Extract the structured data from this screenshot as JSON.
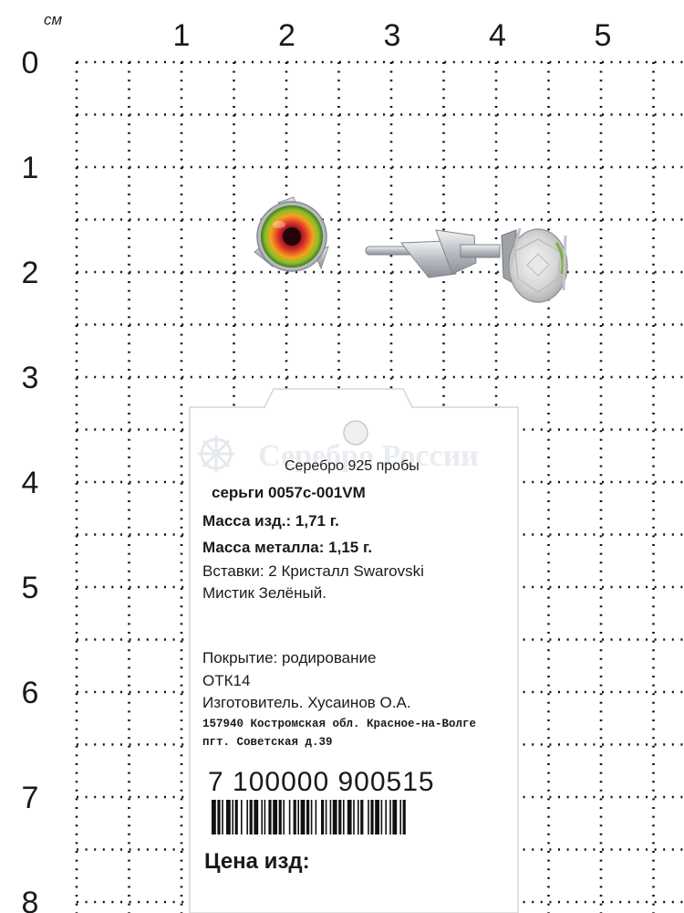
{
  "ruler": {
    "unit": "см",
    "x_labels": [
      "1",
      "2",
      "3",
      "4",
      "5"
    ],
    "y_labels": [
      "0",
      "1",
      "2",
      "3",
      "4",
      "5",
      "6",
      "7",
      "8"
    ]
  },
  "tag": {
    "watermark": "Серебро России",
    "metal": "Серебро 925 пробы",
    "article": "серьги 0057с-001VM",
    "mass_item": "Масса изд.: 1,71 г.",
    "mass_metal": "Масса металла: 1,15 г.",
    "inserts_line1": "Вставки:  2 Кристалл Swarovski",
    "inserts_line2": "Мистик Зелёный.",
    "coating": "Покрытие: родирование",
    "otk": "ОТК14",
    "maker": "Изготовитель.   Хусаинов О.А.",
    "address_line1": "157940 Костромская обл. Красное-на-Волге",
    "address_line2": "пгт. Советская д.39",
    "barcode_number": "7 100000 900515",
    "price_label": "Цена изд:"
  },
  "colors": {
    "background": "#ffffff",
    "grid_dots": "#111111",
    "gem_center": "#5a0a14",
    "gem_mid": "#e0322a",
    "gem_edge": "#8bbf2a",
    "metal": "#c9ccd1"
  }
}
